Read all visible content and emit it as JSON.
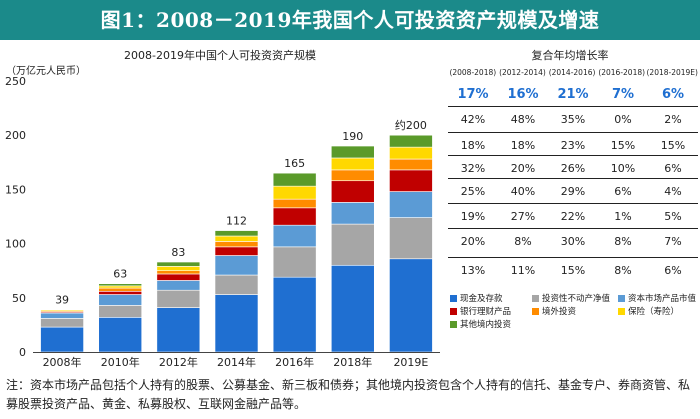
{
  "banner_title": "图1：2008－2019年我国个人可投资资产规模及增速",
  "chart_data": {
    "type": "bar",
    "stacked": true,
    "title": "2008-2019年中国个人可投资资产规模",
    "ylabel": "（万亿元人民币）",
    "ylim": [
      0,
      250
    ],
    "yticks": [
      0,
      50,
      100,
      150,
      200,
      250
    ],
    "categories": [
      "2008年",
      "2010年",
      "2012年",
      "2014年",
      "2016年",
      "2018年",
      "2019E"
    ],
    "totals": [
      "39",
      "63",
      "83",
      "112",
      "165",
      "190",
      "约200"
    ],
    "series": [
      {
        "name": "现金及存款",
        "color": "#1f6fd1",
        "values": [
          23,
          32,
          41,
          53,
          69,
          80,
          86
        ]
      },
      {
        "name": "投资性不动产净值",
        "color": "#a6a6a6",
        "values": [
          8,
          11,
          16,
          18,
          28,
          38,
          38
        ]
      },
      {
        "name": "资本市场产品市值",
        "color": "#5b9bd5",
        "values": [
          5,
          10,
          9,
          18,
          20,
          20,
          24
        ]
      },
      {
        "name": "银行理财产品",
        "color": "#c00000",
        "values": [
          1,
          3,
          6,
          8,
          16,
          20,
          20
        ]
      },
      {
        "name": "境外投资",
        "color": "#ff8c00",
        "values": [
          1,
          3,
          3,
          5,
          8,
          10,
          10
        ]
      },
      {
        "name": "保险（寿险）",
        "color": "#ffd800",
        "values": [
          1,
          2,
          4,
          5,
          12,
          11,
          11
        ]
      },
      {
        "name": "其他境内投资",
        "color": "#5a9a2a",
        "values": [
          0,
          2,
          4,
          5,
          12,
          11,
          11
        ]
      }
    ]
  },
  "cagr": {
    "title": "复合年均增长率",
    "periods": [
      "(2008-2018)",
      "(2012-2014)",
      "(2014-2016)",
      "(2016-2018)",
      "(2018-2019E)"
    ],
    "headline": [
      "17%",
      "16%",
      "21%",
      "7%",
      "6%"
    ],
    "rows": [
      [
        "42%",
        "48%",
        "35%",
        "0%",
        "2%"
      ],
      [
        "18%",
        "18%",
        "23%",
        "15%",
        "15%"
      ],
      [
        "32%",
        "20%",
        "26%",
        "10%",
        "6%"
      ],
      [
        "25%",
        "40%",
        "29%",
        "6%",
        "4%"
      ],
      [
        "19%",
        "27%",
        "22%",
        "1%",
        "5%"
      ],
      [
        "20%",
        "8%",
        "30%",
        "8%",
        "7%"
      ],
      [
        "13%",
        "11%",
        "15%",
        "8%",
        "6%"
      ]
    ]
  },
  "note": "注：资本市场产品包括个人持有的股票、公募基金、新三板和债券；其他境内投资包含个人持有的信托、基金专户、券商资管、私募股票投资产品、黄金、私募股权、互联网金融产品等。"
}
